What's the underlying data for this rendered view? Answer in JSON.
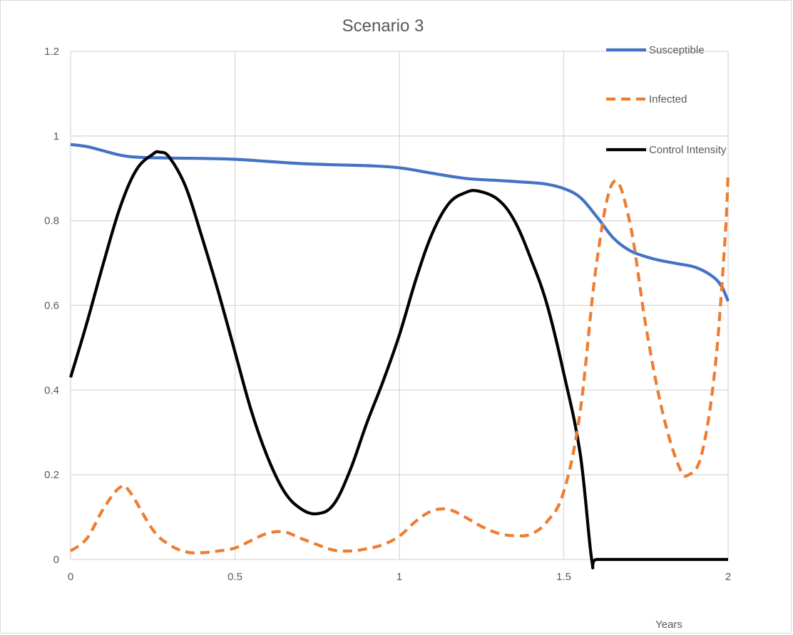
{
  "chart_data": {
    "type": "line",
    "title": "Scenario 3",
    "xlabel": "Years",
    "ylabel": "",
    "xlim": [
      0,
      2
    ],
    "ylim": [
      0,
      1.2
    ],
    "x_ticks": [
      "0",
      "0.5",
      "1",
      "1.5",
      "2"
    ],
    "y_ticks": [
      "0",
      "0.2",
      "0.4",
      "0.6",
      "0.8",
      "1",
      "1.2"
    ],
    "grid": true,
    "legend_position": "top-right",
    "series": [
      {
        "name": "Susceptible",
        "color": "#4472c4",
        "dash": "solid",
        "points": [
          [
            0,
            0.98
          ],
          [
            0.05,
            0.975
          ],
          [
            0.1,
            0.965
          ],
          [
            0.15,
            0.955
          ],
          [
            0.2,
            0.95
          ],
          [
            0.3,
            0.948
          ],
          [
            0.4,
            0.947
          ],
          [
            0.5,
            0.945
          ],
          [
            0.6,
            0.94
          ],
          [
            0.7,
            0.935
          ],
          [
            0.8,
            0.932
          ],
          [
            0.9,
            0.93
          ],
          [
            1.0,
            0.925
          ],
          [
            1.1,
            0.912
          ],
          [
            1.2,
            0.9
          ],
          [
            1.3,
            0.895
          ],
          [
            1.4,
            0.89
          ],
          [
            1.45,
            0.886
          ],
          [
            1.5,
            0.876
          ],
          [
            1.55,
            0.855
          ],
          [
            1.6,
            0.81
          ],
          [
            1.65,
            0.76
          ],
          [
            1.7,
            0.73
          ],
          [
            1.75,
            0.715
          ],
          [
            1.8,
            0.705
          ],
          [
            1.85,
            0.698
          ],
          [
            1.9,
            0.69
          ],
          [
            1.95,
            0.67
          ],
          [
            1.98,
            0.645
          ],
          [
            2.0,
            0.61
          ]
        ]
      },
      {
        "name": "Infected",
        "color": "#ed7d31",
        "dash": "dashed",
        "points": [
          [
            0,
            0.02
          ],
          [
            0.05,
            0.05
          ],
          [
            0.1,
            0.12
          ],
          [
            0.15,
            0.17
          ],
          [
            0.18,
            0.16
          ],
          [
            0.25,
            0.07
          ],
          [
            0.3,
            0.035
          ],
          [
            0.35,
            0.018
          ],
          [
            0.4,
            0.016
          ],
          [
            0.45,
            0.02
          ],
          [
            0.5,
            0.027
          ],
          [
            0.55,
            0.045
          ],
          [
            0.6,
            0.062
          ],
          [
            0.65,
            0.065
          ],
          [
            0.7,
            0.05
          ],
          [
            0.75,
            0.035
          ],
          [
            0.8,
            0.022
          ],
          [
            0.85,
            0.02
          ],
          [
            0.9,
            0.025
          ],
          [
            0.95,
            0.035
          ],
          [
            1.0,
            0.055
          ],
          [
            1.05,
            0.09
          ],
          [
            1.1,
            0.115
          ],
          [
            1.15,
            0.118
          ],
          [
            1.2,
            0.1
          ],
          [
            1.25,
            0.078
          ],
          [
            1.3,
            0.062
          ],
          [
            1.35,
            0.056
          ],
          [
            1.4,
            0.06
          ],
          [
            1.45,
            0.09
          ],
          [
            1.5,
            0.16
          ],
          [
            1.55,
            0.35
          ],
          [
            1.6,
            0.7
          ],
          [
            1.65,
            0.89
          ],
          [
            1.7,
            0.8
          ],
          [
            1.75,
            0.55
          ],
          [
            1.8,
            0.35
          ],
          [
            1.85,
            0.22
          ],
          [
            1.88,
            0.2
          ],
          [
            1.92,
            0.25
          ],
          [
            1.96,
            0.45
          ],
          [
            1.99,
            0.75
          ],
          [
            2.0,
            0.91
          ]
        ]
      },
      {
        "name": "Control Intensity",
        "color": "#000000",
        "dash": "solid",
        "points": [
          [
            0,
            0.43
          ],
          [
            0.05,
            0.56
          ],
          [
            0.1,
            0.7
          ],
          [
            0.15,
            0.83
          ],
          [
            0.2,
            0.92
          ],
          [
            0.25,
            0.957
          ],
          [
            0.27,
            0.962
          ],
          [
            0.3,
            0.95
          ],
          [
            0.35,
            0.88
          ],
          [
            0.4,
            0.76
          ],
          [
            0.45,
            0.63
          ],
          [
            0.5,
            0.49
          ],
          [
            0.55,
            0.35
          ],
          [
            0.6,
            0.24
          ],
          [
            0.65,
            0.16
          ],
          [
            0.7,
            0.12
          ],
          [
            0.75,
            0.108
          ],
          [
            0.8,
            0.13
          ],
          [
            0.85,
            0.21
          ],
          [
            0.9,
            0.32
          ],
          [
            0.95,
            0.42
          ],
          [
            1.0,
            0.53
          ],
          [
            1.05,
            0.66
          ],
          [
            1.1,
            0.77
          ],
          [
            1.15,
            0.84
          ],
          [
            1.2,
            0.866
          ],
          [
            1.24,
            0.87
          ],
          [
            1.3,
            0.85
          ],
          [
            1.35,
            0.8
          ],
          [
            1.4,
            0.71
          ],
          [
            1.45,
            0.6
          ],
          [
            1.5,
            0.44
          ],
          [
            1.55,
            0.25
          ],
          [
            1.585,
            0.0
          ],
          [
            1.6,
            0.0
          ],
          [
            1.7,
            0.0
          ],
          [
            1.8,
            0.0
          ],
          [
            1.9,
            0.0
          ],
          [
            2.0,
            0.0
          ]
        ]
      }
    ]
  }
}
